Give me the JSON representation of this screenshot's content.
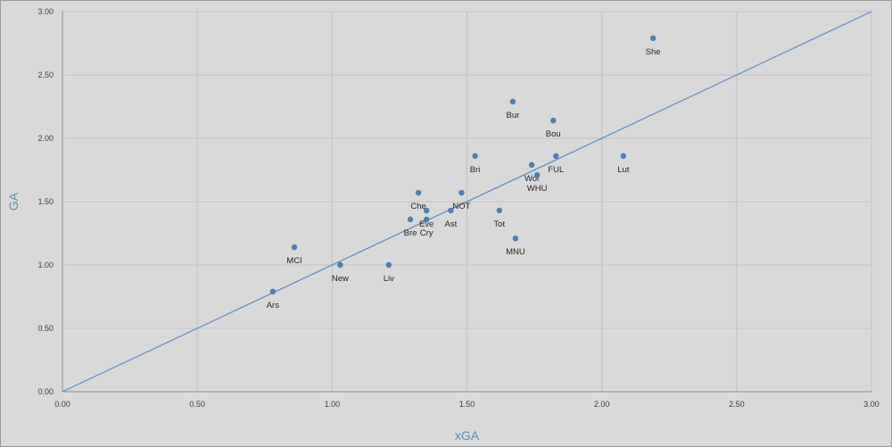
{
  "colors": {
    "background": "#d9d9d9",
    "grid": "#c2c2c2",
    "axis": "#8f8f8f",
    "point": "#4f7fb4",
    "reference_line": "#5b8ac6",
    "axis_title": "#5a8fb5"
  },
  "chart_data": {
    "type": "scatter",
    "title": "",
    "xlabel": "xGA",
    "ylabel": "GA",
    "xlim": [
      0,
      3
    ],
    "ylim": [
      0,
      3
    ],
    "x_ticks": [
      "0.00",
      "0.50",
      "1.00",
      "1.50",
      "2.00",
      "2.50",
      "3.00"
    ],
    "y_ticks": [
      "0.00",
      "0.50",
      "1.00",
      "1.50",
      "2.00",
      "2.50",
      "3.00"
    ],
    "grid": true,
    "legend": "none",
    "reference_line": {
      "from": [
        0,
        0
      ],
      "to": [
        3,
        3
      ]
    },
    "points": [
      {
        "label": "She",
        "x": 2.19,
        "y": 2.79
      },
      {
        "label": "Bur",
        "x": 1.67,
        "y": 2.29
      },
      {
        "label": "Bou",
        "x": 1.82,
        "y": 2.14
      },
      {
        "label": "Bri",
        "x": 1.53,
        "y": 1.86
      },
      {
        "label": "FUL",
        "x": 1.83,
        "y": 1.86
      },
      {
        "label": "Lut",
        "x": 2.08,
        "y": 1.86
      },
      {
        "label": "Wol",
        "x": 1.74,
        "y": 1.79
      },
      {
        "label": "WHU",
        "x": 1.76,
        "y": 1.71
      },
      {
        "label": "Che",
        "x": 1.32,
        "y": 1.57
      },
      {
        "label": "NOT",
        "x": 1.48,
        "y": 1.57
      },
      {
        "label": "Eve",
        "x": 1.35,
        "y": 1.43
      },
      {
        "label": "Ast",
        "x": 1.44,
        "y": 1.43
      },
      {
        "label": "Tot",
        "x": 1.62,
        "y": 1.43
      },
      {
        "label": "Bre",
        "x": 1.29,
        "y": 1.36
      },
      {
        "label": "Cry",
        "x": 1.35,
        "y": 1.36
      },
      {
        "label": "MNU",
        "x": 1.68,
        "y": 1.21
      },
      {
        "label": "MCI",
        "x": 0.86,
        "y": 1.14
      },
      {
        "label": "New",
        "x": 1.03,
        "y": 1.0
      },
      {
        "label": "Liv",
        "x": 1.21,
        "y": 1.0
      },
      {
        "label": "Ars",
        "x": 0.78,
        "y": 0.79
      }
    ]
  }
}
